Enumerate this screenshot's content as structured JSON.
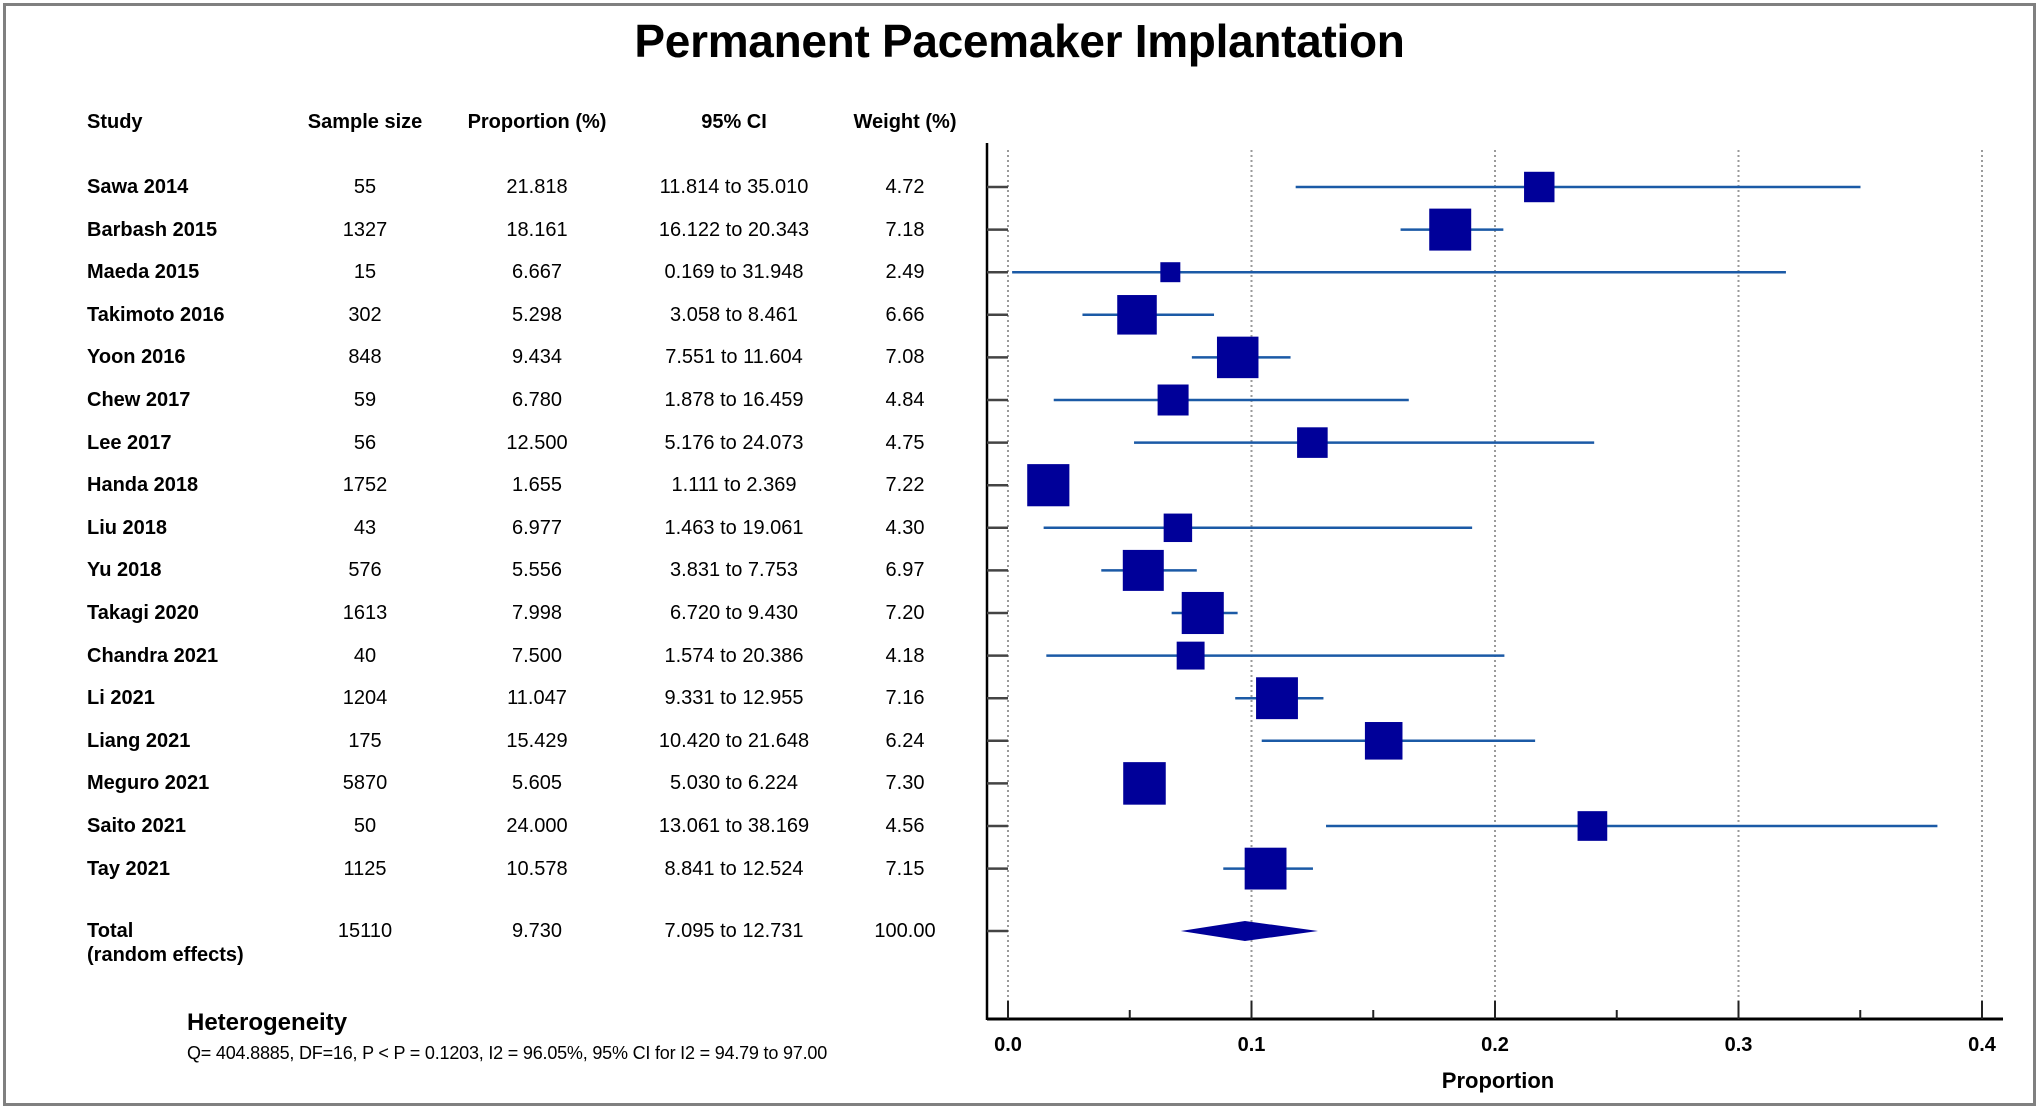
{
  "title": "Permanent Pacemaker Implantation",
  "headers": {
    "study": "Study",
    "sample_size": "Sample size",
    "proportion": "Proportion (%)",
    "ci": "95% CI",
    "weight": "Weight (%)"
  },
  "rows": [
    {
      "study": "Sawa 2014",
      "n": "55",
      "prop": "21.818",
      "ci": "11.814 to 35.010",
      "weight": "4.72"
    },
    {
      "study": "Barbash 2015",
      "n": "1327",
      "prop": "18.161",
      "ci": "16.122 to 20.343",
      "weight": "7.18"
    },
    {
      "study": "Maeda 2015",
      "n": "15",
      "prop": "6.667",
      "ci": "0.169 to 31.948",
      "weight": "2.49"
    },
    {
      "study": "Takimoto 2016",
      "n": "302",
      "prop": "5.298",
      "ci": "3.058 to 8.461",
      "weight": "6.66"
    },
    {
      "study": "Yoon 2016",
      "n": "848",
      "prop": "9.434",
      "ci": "7.551 to 11.604",
      "weight": "7.08"
    },
    {
      "study": "Chew 2017",
      "n": "59",
      "prop": "6.780",
      "ci": "1.878 to 16.459",
      "weight": "4.84"
    },
    {
      "study": "Lee 2017",
      "n": "56",
      "prop": "12.500",
      "ci": "5.176 to 24.073",
      "weight": "4.75"
    },
    {
      "study": "Handa 2018",
      "n": "1752",
      "prop": "1.655",
      "ci": "1.111 to 2.369",
      "weight": "7.22"
    },
    {
      "study": "Liu 2018",
      "n": "43",
      "prop": "6.977",
      "ci": "1.463 to 19.061",
      "weight": "4.30"
    },
    {
      "study": "Yu 2018",
      "n": "576",
      "prop": "5.556",
      "ci": "3.831 to 7.753",
      "weight": "6.97"
    },
    {
      "study": "Takagi 2020",
      "n": "1613",
      "prop": "7.998",
      "ci": "6.720 to 9.430",
      "weight": "7.20"
    },
    {
      "study": "Chandra 2021",
      "n": "40",
      "prop": "7.500",
      "ci": "1.574 to 20.386",
      "weight": "4.18"
    },
    {
      "study": "Li 2021",
      "n": "1204",
      "prop": "11.047",
      "ci": "9.331 to 12.955",
      "weight": "7.16"
    },
    {
      "study": "Liang 2021",
      "n": "175",
      "prop": "15.429",
      "ci": "10.420 to 21.648",
      "weight": "6.24"
    },
    {
      "study": "Meguro 2021",
      "n": "5870",
      "prop": "5.605",
      "ci": "5.030 to 6.224",
      "weight": "7.30"
    },
    {
      "study": "Saito 2021",
      "n": "50",
      "prop": "24.000",
      "ci": "13.061 to 38.169",
      "weight": "4.56"
    },
    {
      "study": "Tay 2021",
      "n": "1125",
      "prop": "10.578",
      "ci": "8.841 to 12.524",
      "weight": "7.15"
    }
  ],
  "total": {
    "label_line1": "Total",
    "label_line2": "(random effects)",
    "n": "15110",
    "prop": "9.730",
    "ci": "7.095 to 12.731",
    "weight": "100.00"
  },
  "heterogeneity": {
    "title": "Heterogeneity",
    "text": "Q= 404.8885, DF=16, P < P = 0.1203, I2 = 96.05%, 95% CI for I2 = 94.79 to 97.00"
  },
  "colors": {
    "box": "#000099",
    "ci_line": "#1b5aa6",
    "grid": "#9a9a9a",
    "border": "#808080"
  },
  "chart_data": {
    "type": "forest",
    "title": "Permanent Pacemaker Implantation",
    "xlabel": "Proportion",
    "xlim": [
      0.0,
      0.4
    ],
    "xticks": [
      "0.0",
      "0.1",
      "0.2",
      "0.3",
      "0.4"
    ],
    "xtick_values": [
      0.0,
      0.1,
      0.2,
      0.3,
      0.4
    ],
    "minor_tick_values": [
      0.05,
      0.15,
      0.25,
      0.35
    ],
    "grid": "vertical dotted at major ticks",
    "studies": [
      {
        "name": "Sawa 2014",
        "estimate": 0.21818,
        "lower": 0.11814,
        "upper": 0.3501,
        "weight": 4.72
      },
      {
        "name": "Barbash 2015",
        "estimate": 0.18161,
        "lower": 0.16122,
        "upper": 0.20343,
        "weight": 7.18
      },
      {
        "name": "Maeda 2015",
        "estimate": 0.06667,
        "lower": 0.00169,
        "upper": 0.31948,
        "weight": 2.49
      },
      {
        "name": "Takimoto 2016",
        "estimate": 0.05298,
        "lower": 0.03058,
        "upper": 0.08461,
        "weight": 6.66
      },
      {
        "name": "Yoon 2016",
        "estimate": 0.09434,
        "lower": 0.07551,
        "upper": 0.11604,
        "weight": 7.08
      },
      {
        "name": "Chew 2017",
        "estimate": 0.0678,
        "lower": 0.01878,
        "upper": 0.16459,
        "weight": 4.84
      },
      {
        "name": "Lee 2017",
        "estimate": 0.125,
        "lower": 0.05176,
        "upper": 0.24073,
        "weight": 4.75
      },
      {
        "name": "Handa 2018",
        "estimate": 0.01655,
        "lower": 0.01111,
        "upper": 0.02369,
        "weight": 7.22
      },
      {
        "name": "Liu 2018",
        "estimate": 0.06977,
        "lower": 0.01463,
        "upper": 0.19061,
        "weight": 4.3
      },
      {
        "name": "Yu 2018",
        "estimate": 0.05556,
        "lower": 0.03831,
        "upper": 0.07753,
        "weight": 6.97
      },
      {
        "name": "Takagi 2020",
        "estimate": 0.07998,
        "lower": 0.0672,
        "upper": 0.0943,
        "weight": 7.2
      },
      {
        "name": "Chandra 2021",
        "estimate": 0.075,
        "lower": 0.01574,
        "upper": 0.20386,
        "weight": 4.18
      },
      {
        "name": "Li 2021",
        "estimate": 0.11047,
        "lower": 0.09331,
        "upper": 0.12955,
        "weight": 7.16
      },
      {
        "name": "Liang 2021",
        "estimate": 0.15429,
        "lower": 0.1042,
        "upper": 0.21648,
        "weight": 6.24
      },
      {
        "name": "Meguro 2021",
        "estimate": 0.05605,
        "lower": 0.0503,
        "upper": 0.06224,
        "weight": 7.3
      },
      {
        "name": "Saito 2021",
        "estimate": 0.24,
        "lower": 0.13061,
        "upper": 0.38169,
        "weight": 4.56
      },
      {
        "name": "Tay 2021",
        "estimate": 0.10578,
        "lower": 0.08841,
        "upper": 0.12524,
        "weight": 7.15
      }
    ],
    "pooled": {
      "name": "Total (random effects)",
      "estimate": 0.0973,
      "lower": 0.07095,
      "upper": 0.12731,
      "weight": 100.0
    }
  }
}
